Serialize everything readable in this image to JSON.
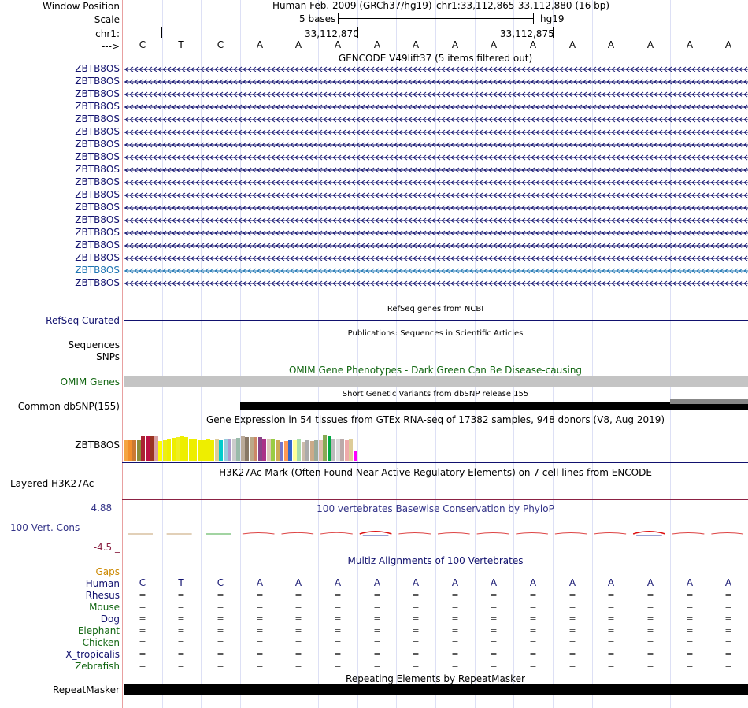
{
  "header": {
    "window_position_label": "Window Position",
    "scale_label": "Scale",
    "chrom_label": "chr1:",
    "strand_label": "--->",
    "assembly": "Human Feb. 2009 (GRCh37/hg19)",
    "position": "chr1:33,112,865-33,112,880 (16 bp)",
    "scale_text": "5 bases",
    "scale_db": "hg19",
    "coord1": "33,112,870",
    "coord2": "33,112,875"
  },
  "bases": [
    "C",
    "T",
    "C",
    "A",
    "A",
    "A",
    "A",
    "A",
    "A",
    "A",
    "A",
    "A",
    "A",
    "A",
    "A",
    "A"
  ],
  "gencode": {
    "title": "GENCODE V49lift37 (5 items filtered out)",
    "items": [
      {
        "label": "ZBTB8OS",
        "color": "#11116e"
      },
      {
        "label": "ZBTB8OS",
        "color": "#11116e"
      },
      {
        "label": "ZBTB8OS",
        "color": "#11116e"
      },
      {
        "label": "ZBTB8OS",
        "color": "#11116e"
      },
      {
        "label": "ZBTB8OS",
        "color": "#11116e"
      },
      {
        "label": "ZBTB8OS",
        "color": "#11116e"
      },
      {
        "label": "ZBTB8OS",
        "color": "#11116e"
      },
      {
        "label": "ZBTB8OS",
        "color": "#11116e"
      },
      {
        "label": "ZBTB8OS",
        "color": "#11116e"
      },
      {
        "label": "ZBTB8OS",
        "color": "#11116e"
      },
      {
        "label": "ZBTB8OS",
        "color": "#11116e"
      },
      {
        "label": "ZBTB8OS",
        "color": "#11116e"
      },
      {
        "label": "ZBTB8OS",
        "color": "#11116e"
      },
      {
        "label": "ZBTB8OS",
        "color": "#11116e"
      },
      {
        "label": "ZBTB8OS",
        "color": "#11116e"
      },
      {
        "label": "ZBTB8OS",
        "color": "#11116e"
      },
      {
        "label": "ZBTB8OS",
        "color": "#1d74b2"
      },
      {
        "label": "ZBTB8OS",
        "color": "#11116e"
      }
    ]
  },
  "refseq": {
    "title": "RefSeq genes from NCBI",
    "label": "RefSeq Curated",
    "color": "#11116e"
  },
  "publications": {
    "title": "Publications: Sequences in Scientific Articles",
    "label1": "Sequences",
    "label2": "SNPs"
  },
  "omim": {
    "title": "OMIM Gene Phenotypes - Dark Green Can Be Disease-causing",
    "label": "OMIM Genes",
    "color": "#116611"
  },
  "dbsnp": {
    "title": "Short Genetic Variants from dbSNP release 155",
    "label": "Common dbSNP(155)"
  },
  "gtex": {
    "title": "Gene Expression in 54 tissues from GTEx RNA-seq of 17382 samples, 948 donors (V8, Aug 2019)",
    "label": "ZBTB8OS",
    "levels": [
      0.6,
      0.6,
      0.6,
      0.6,
      0.72,
      0.72,
      0.74,
      0.72,
      0.58,
      0.6,
      0.62,
      0.66,
      0.7,
      0.74,
      0.68,
      0.64,
      0.62,
      0.6,
      0.6,
      0.62,
      0.6,
      0.62,
      0.6,
      0.64,
      0.64,
      0.64,
      0.66,
      0.74,
      0.7,
      0.7,
      0.7,
      0.68,
      0.64,
      0.64,
      0.64,
      0.6,
      0.56,
      0.58,
      0.6,
      0.6,
      0.64,
      0.56,
      0.6,
      0.58,
      0.6,
      0.6,
      0.76,
      0.74,
      0.64,
      0.62,
      0.62,
      0.6,
      0.64,
      0.28
    ],
    "colors": [
      "#f5a442",
      "#f28e2b",
      "#cc7a33",
      "#8b8b3a",
      "#aa2233",
      "#bb1144",
      "#993322",
      "#d8a0a0",
      "#ffff00",
      "#eeee11",
      "#eeee00",
      "#eeee00",
      "#eeee22",
      "#eeee00",
      "#eeee00",
      "#eeee00",
      "#eeee00",
      "#eeee00",
      "#eeee00",
      "#eeee00",
      "#eeee00",
      "#ddcc99",
      "#00cccc",
      "#99ccdd",
      "#aa99cc",
      "#cccccc",
      "#99bbaa",
      "#bbaa99",
      "#887766",
      "#bbaa88",
      "#cc8866",
      "#884488",
      "#aa3388",
      "#ddccbb",
      "#99cc44",
      "#ccaa55",
      "#7777cc",
      "#ff9955",
      "#3366cc",
      "#ffff99",
      "#aaddaa",
      "#ccbbaa",
      "#aaaaaa",
      "#ccaa88",
      "#99aa99",
      "#ddbbaa",
      "#88aa55",
      "#00aa44",
      "#bbbbbb",
      "#dddddd",
      "#bbaaaa",
      "#eeaaaa",
      "#ddcc99",
      "#ff00ff"
    ]
  },
  "h3k27ac": {
    "title": "H3K27Ac Mark (Often Found Near Active Regulatory Elements) on 7 cell lines from ENCODE",
    "label": "Layered H3K27Ac"
  },
  "phylop": {
    "title": "100 vertebrates Basewise Conservation by PhyloP",
    "label": "100 Vert. Cons",
    "ymax": "4.88 _",
    "ymin": "-4.5 _",
    "color": "#333388",
    "values": [
      0.05,
      -0.05,
      0.05,
      0.2,
      0.25,
      0.3,
      0.9,
      0.2,
      0.2,
      0.2,
      0.2,
      0.2,
      0.2,
      0.9,
      0.2,
      0.2
    ]
  },
  "multiz": {
    "title": "Multiz Alignments of 100 Vertebrates",
    "gaps_label": "Gaps",
    "gaps_color": "#cc8800",
    "human_label": "Human",
    "species": [
      "Rhesus",
      "Mouse",
      "Dog",
      "Elephant",
      "Chicken",
      "X_tropicalis",
      "Zebrafish"
    ],
    "species_colors": [
      "#11116e",
      "#116611",
      "#11116e",
      "#116611",
      "#116611",
      "#11116e",
      "#116611"
    ],
    "dash": "=",
    "aligned_counts": [
      1,
      1,
      1,
      1,
      1,
      1,
      1,
      0
    ]
  },
  "repeatmasker": {
    "title": "Repeating Elements by RepeatMasker",
    "label": "RepeatMasker"
  }
}
